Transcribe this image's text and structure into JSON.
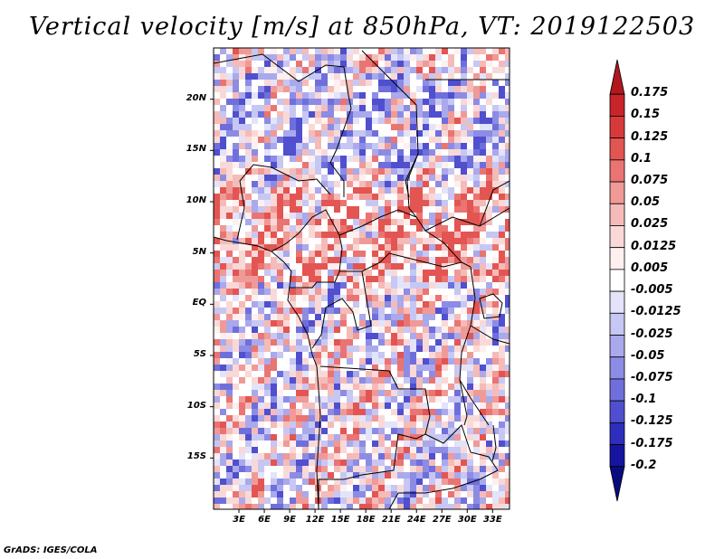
{
  "title": "Vertical velocity [m/s] at 850hPa, VT: 2019122503",
  "credit": "GrADS: IGES/COLA",
  "map": {
    "lat_labels": [
      "20N",
      "15N",
      "10N",
      "5N",
      "EQ",
      "5S",
      "10S",
      "15S"
    ],
    "lat_values": [
      20,
      15,
      10,
      5,
      0,
      -5,
      -10,
      -15
    ],
    "lon_labels": [
      "3E",
      "6E",
      "9E",
      "12E",
      "15E",
      "18E",
      "21E",
      "24E",
      "27E",
      "30E",
      "33E"
    ],
    "lon_values": [
      3,
      6,
      9,
      12,
      15,
      18,
      21,
      24,
      27,
      30,
      33
    ],
    "lon_range": [
      0,
      35
    ],
    "lat_range": [
      -20,
      25
    ]
  },
  "colorbar": {
    "labels": [
      "0.175",
      "0.15",
      "0.125",
      "0.1",
      "0.075",
      "0.05",
      "0.025",
      "0.0125",
      "0.005",
      "-0.005",
      "-0.0125",
      "-0.025",
      "-0.05",
      "-0.075",
      "-0.1",
      "-0.125",
      "-0.175",
      "-0.2"
    ],
    "colors": [
      "#b0181d",
      "#c8242a",
      "#d83a3c",
      "#e35552",
      "#ea7472",
      "#f09a97",
      "#f5bbb8",
      "#f9d9d7",
      "#fdf0ef",
      "#ffffff",
      "#e3e3fa",
      "#c7c7f3",
      "#a9a9ec",
      "#8c8ce4",
      "#6f6fdc",
      "#4f4fcf",
      "#2e2ebd",
      "#1515a0",
      "#0a0a80"
    ]
  }
}
